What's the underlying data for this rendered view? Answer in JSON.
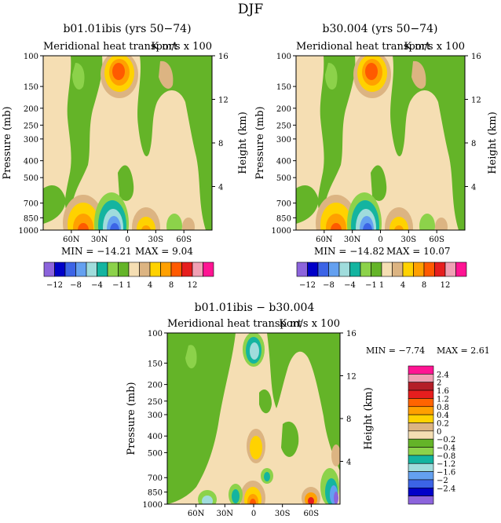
{
  "figure": {
    "title": "DJF"
  },
  "panels": [
    {
      "title": "b01.01ibis (yrs 50−74)",
      "subtitle_left": "Meridional heat transport",
      "subtitle_right": "K m/s x 100",
      "stats_min": "MIN = −14.21",
      "stats_max": "MAX =   9.04"
    },
    {
      "title": "b30.004 (yrs 50−74)",
      "subtitle_left": "Meridional heat transport",
      "subtitle_right": "K m/s x 100",
      "stats_min": "MIN = −14.82",
      "stats_max": "MAX =  10.07"
    },
    {
      "title": "b01.01ibis − b30.004",
      "subtitle_left": "Meridional heat transport",
      "subtitle_right": "K m/s x 100",
      "stats_min": "MIN =   −7.74",
      "stats_max": "MAX =   2.61"
    }
  ],
  "axes": {
    "left_label": "Pressure (mb)",
    "right_label": "Height (km)",
    "pressure_ticks": [
      "100",
      "150",
      "200",
      "250",
      "300",
      "400",
      "500",
      "700",
      "850",
      "1000"
    ],
    "height_ticks": [
      "16",
      "12",
      "8",
      "4"
    ],
    "lat_ticks": [
      "60N",
      "30N",
      "0",
      "30S",
      "60S"
    ]
  },
  "colorbar_top": {
    "labels": [
      "−12",
      "−8",
      "−4",
      "−1",
      "1",
      "4",
      "8",
      "12"
    ],
    "colors": [
      "#8c64dc",
      "#0000c8",
      "#3c64e6",
      "#64a0f0",
      "#a0dcdc",
      "#14b4a0",
      "#8cd24a",
      "#64b428",
      "#f5deb3",
      "#dcb482",
      "#ffd200",
      "#ffa000",
      "#ff5a00",
      "#e61e1e",
      "#f0a0b4",
      "#ff1493"
    ]
  },
  "colorbar_diff": {
    "labels": [
      "2.4",
      "2",
      "1.6",
      "1.2",
      "0.8",
      "0.4",
      "0.2",
      "0",
      "−0.2",
      "−0.4",
      "−0.8",
      "−1.2",
      "−1.6",
      "−2",
      "−2.4"
    ],
    "colors": [
      "#ff1493",
      "#f0a0b4",
      "#b41e28",
      "#e61e1e",
      "#ff6400",
      "#ffa000",
      "#ffd200",
      "#dcb482",
      "#f5deb3",
      "#64b428",
      "#8cd24a",
      "#14b4a0",
      "#a0dcdc",
      "#64a0f0",
      "#3c64e6",
      "#0000c8",
      "#8c64dc"
    ]
  },
  "chart_data": [
    {
      "type": "heatmap",
      "title": "b01.01ibis (yrs 50−74)",
      "xlabel": "",
      "ylabel": "Pressure (mb)",
      "y2label": "Height (km)",
      "x_ticks": [
        "60N",
        "30N",
        "0",
        "30S",
        "60S"
      ],
      "y_ticks": [
        100,
        150,
        200,
        250,
        300,
        400,
        500,
        700,
        850,
        1000
      ],
      "min": -14.21,
      "max": 9.04
    },
    {
      "type": "heatmap",
      "title": "b30.004 (yrs 50−74)",
      "xlabel": "",
      "ylabel": "Pressure (mb)",
      "y2label": "Height (km)",
      "x_ticks": [
        "60N",
        "30N",
        "0",
        "30S",
        "60S"
      ],
      "y_ticks": [
        100,
        150,
        200,
        250,
        300,
        400,
        500,
        700,
        850,
        1000
      ],
      "min": -14.82,
      "max": 10.07
    },
    {
      "type": "heatmap",
      "title": "b01.01ibis − b30.004",
      "xlabel": "",
      "ylabel": "Pressure (mb)",
      "y2label": "Height (km)",
      "x_ticks": [
        "60N",
        "30N",
        "0",
        "30S",
        "60S"
      ],
      "y_ticks": [
        100,
        150,
        200,
        250,
        300,
        400,
        500,
        700,
        850,
        1000
      ],
      "min": -7.74,
      "max": 2.61
    }
  ]
}
